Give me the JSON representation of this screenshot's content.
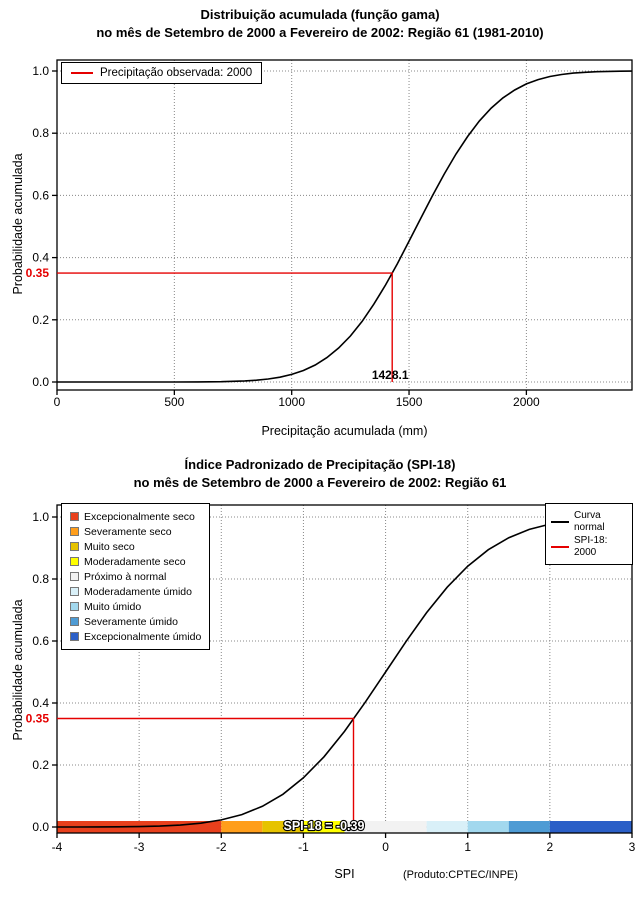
{
  "chart_data": [
    {
      "type": "line",
      "title": "Distribuição acumulada (função gama)",
      "subtitle": "no mês de Setembro de 2000 a Fevereiro de 2002: Região 61 (1981-2010)",
      "xlabel": "Precipitação acumulada (mm)",
      "ylabel": "Probabilidade acumulada",
      "xlim": [
        0,
        2450
      ],
      "ylim": [
        0,
        1
      ],
      "xticks": [
        0,
        500,
        1000,
        1500,
        2000
      ],
      "yticks": [
        "0.0",
        "0.2",
        "0.4",
        "0.6",
        "0.8",
        "1.0"
      ],
      "grid": true,
      "legend_position": "topleft",
      "legend": [
        {
          "label": "Precipitação observada: 2000",
          "color": "#E50000"
        }
      ],
      "series": [
        {
          "name": "Distribuição acumulada (função gama)",
          "color": "#000000",
          "x": [
            0,
            100,
            200,
            300,
            400,
            500,
            600,
            700,
            800,
            850,
            900,
            950,
            1000,
            1050,
            1100,
            1150,
            1200,
            1250,
            1300,
            1350,
            1400,
            1450,
            1500,
            1550,
            1600,
            1650,
            1700,
            1750,
            1800,
            1850,
            1900,
            1950,
            2000,
            2050,
            2100,
            2150,
            2200,
            2250,
            2300,
            2350,
            2400,
            2450
          ],
          "y": [
            0,
            0,
            0,
            0,
            0,
            0.0001,
            0.0003,
            0.001,
            0.0034,
            0.0058,
            0.0096,
            0.0155,
            0.0244,
            0.0371,
            0.0548,
            0.0784,
            0.1093,
            0.1479,
            0.195,
            0.2502,
            0.3121,
            0.3798,
            0.4527,
            0.5266,
            0.5995,
            0.6684,
            0.733,
            0.7896,
            0.8397,
            0.8806,
            0.9136,
            0.9389,
            0.9584,
            0.9722,
            0.9823,
            0.9888,
            0.9933,
            0.9959,
            0.9978,
            0.9987,
            0.9993,
            0.9996
          ]
        }
      ],
      "reference": {
        "probability": 0.35,
        "probability_label": "0.35",
        "value": 1428.1,
        "value_label": "1428.1",
        "color": "#E50000"
      }
    },
    {
      "type": "line",
      "title": "Índice Padronizado de Precipitação (SPI-18)",
      "subtitle": "no mês de Setembro de 2000 a Fevereiro de 2002: Região 61",
      "xlabel": "SPI",
      "ylabel": "Probabilidade acumulada",
      "credit": "(Produto:CPTEC/INPE)",
      "xlim": [
        -4,
        3
      ],
      "ylim": [
        0,
        1
      ],
      "xticks": [
        -4,
        -3,
        -2,
        -1,
        0,
        1,
        2,
        3
      ],
      "yticks": [
        "0.0",
        "0.2",
        "0.4",
        "0.6",
        "0.8",
        "1.0"
      ],
      "grid": true,
      "legend_position": "topleft",
      "categories": [
        {
          "label": "Excepcionalmente seco",
          "color": "#E8401C",
          "range": [
            -4,
            -2
          ]
        },
        {
          "label": "Severamente seco",
          "color": "#FF9E1B",
          "range": [
            -2,
            -1.5
          ]
        },
        {
          "label": "Muito seco",
          "color": "#E6C300",
          "range": [
            -1.5,
            -1
          ]
        },
        {
          "label": "Moderadamente seco",
          "color": "#FFFF00",
          "range": [
            -1,
            -0.5
          ]
        },
        {
          "label": "Próximo à normal",
          "color": "#F2F2F2",
          "range": [
            -0.5,
            0.5
          ]
        },
        {
          "label": "Moderadamente úmido",
          "color": "#D9F0F8",
          "range": [
            0.5,
            1
          ]
        },
        {
          "label": "Muito úmido",
          "color": "#A2D8EE",
          "range": [
            1,
            1.5
          ]
        },
        {
          "label": "Severamente úmido",
          "color": "#4E9BD4",
          "range": [
            1.5,
            2
          ]
        },
        {
          "label": "Excepcionalmente úmido",
          "color": "#2B5FC7",
          "range": [
            2,
            3
          ]
        }
      ],
      "legend_right": [
        {
          "label": "Curva normal",
          "color": "#000000"
        },
        {
          "label": "SPI-18: 2000",
          "color": "#E50000"
        }
      ],
      "series": [
        {
          "name": "Curva normal",
          "color": "#000000",
          "x": [
            -4,
            -3.75,
            -3.5,
            -3.25,
            -3,
            -2.75,
            -2.5,
            -2.25,
            -2,
            -1.75,
            -1.5,
            -1.25,
            -1,
            -0.75,
            -0.5,
            -0.25,
            0,
            0.25,
            0.5,
            0.75,
            1,
            1.25,
            1.5,
            1.75,
            2,
            2.25,
            2.5,
            2.75,
            3
          ],
          "y": [
            0.0,
            0.0001,
            0.0002,
            0.0006,
            0.0013,
            0.003,
            0.0062,
            0.0122,
            0.0228,
            0.0401,
            0.0668,
            0.1056,
            0.1587,
            0.2266,
            0.3085,
            0.4013,
            0.5,
            0.5987,
            0.6915,
            0.7734,
            0.8413,
            0.8944,
            0.9332,
            0.9599,
            0.9772,
            0.9878,
            0.9938,
            0.997,
            0.9987
          ]
        }
      ],
      "reference": {
        "probability": 0.35,
        "probability_label": "0.35",
        "value": -0.39,
        "value_label": "SPI-18 = -0.39",
        "color": "#E50000"
      }
    }
  ]
}
